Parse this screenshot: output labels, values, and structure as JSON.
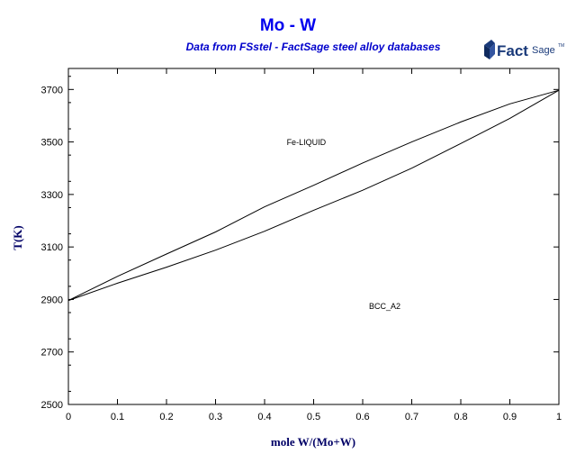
{
  "header": {
    "title": "Mo - W",
    "subtitle": "Data from FSstel - FactSage steel alloy databases"
  },
  "logo": {
    "text_main": "Fact",
    "text_sage": "Sage",
    "tm": "TM",
    "icon": "factsage-logo-icon",
    "color": "#1a3a7a"
  },
  "chart_data": {
    "type": "line",
    "xlabel": "mole W/(Mo+W)",
    "ylabel": "T(K)",
    "xlim": [
      0,
      1
    ],
    "ylim": [
      2500,
      3780
    ],
    "x_ticks": [
      "0",
      "0.1",
      "0.2",
      "0.3",
      "0.4",
      "0.5",
      "0.6",
      "0.7",
      "0.8",
      "0.9",
      "1"
    ],
    "y_ticks": [
      "2500",
      "2700",
      "2900",
      "3100",
      "3300",
      "3500",
      "3700"
    ],
    "grid": false,
    "series": [
      {
        "x": [
          0,
          0.1,
          0.2,
          0.3,
          0.4,
          0.5,
          0.6,
          0.7,
          0.8,
          0.9,
          1.0
        ],
        "y": [
          2896,
          2988,
          3073,
          3157,
          3253,
          3335,
          3420,
          3500,
          3576,
          3645,
          3697
        ]
      },
      {
        "x": [
          0,
          0.1,
          0.2,
          0.3,
          0.4,
          0.5,
          0.6,
          0.7,
          0.8,
          0.9,
          1.0
        ],
        "y": [
          2896,
          2962,
          3023,
          3088,
          3160,
          3240,
          3316,
          3400,
          3494,
          3590,
          3697
        ]
      }
    ],
    "annotations": [
      {
        "text": "Fe-LIQUID",
        "x": 0.485,
        "y": 3488
      },
      {
        "text": "BCC_A2",
        "x": 0.645,
        "y": 2864
      }
    ],
    "line_color": "#000000",
    "axis_title_color": "#000066",
    "title_color": "#0000ee"
  }
}
